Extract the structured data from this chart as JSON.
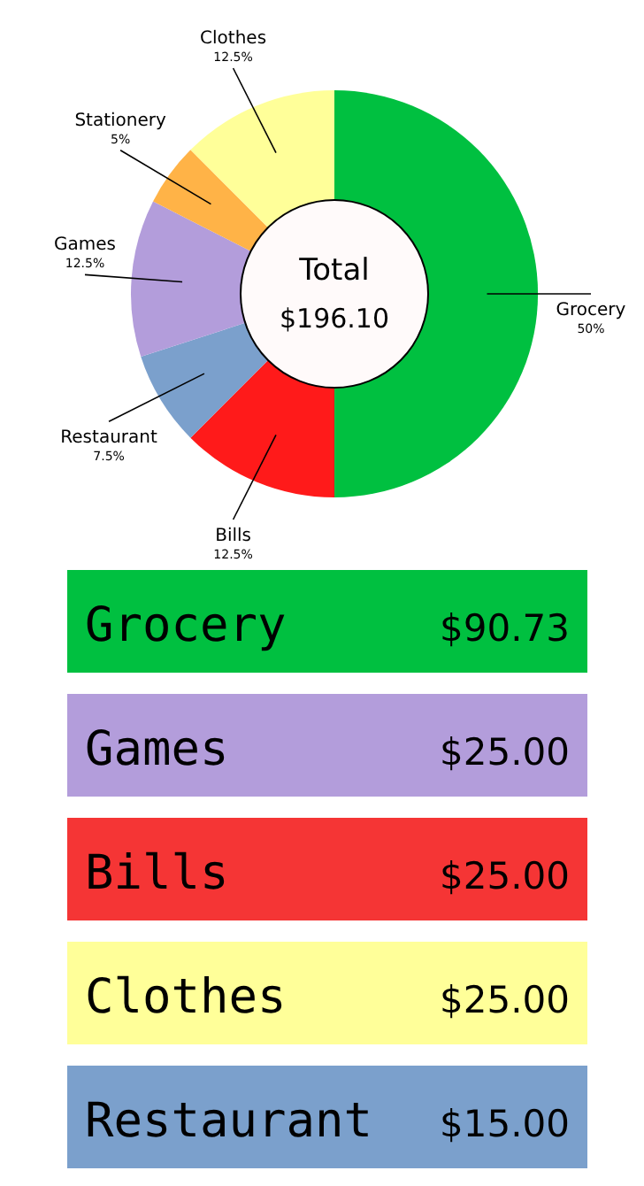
{
  "chart_data": [
    {
      "type": "donut",
      "categories": [
        "Grocery",
        "Bills",
        "Restaurant",
        "Games",
        "Stationery",
        "Clothes"
      ],
      "values": [
        50,
        12.5,
        7.5,
        12.5,
        5,
        12.5
      ],
      "value_labels": [
        "50%",
        "12.5%",
        "7.5%",
        "12.5%",
        "5%",
        "12.5%"
      ],
      "colors": [
        "#00c040",
        "#ff1a1a",
        "#7ba0cc",
        "#b39ddb",
        "#ffb347",
        "#ffff99"
      ],
      "annotations": [
        "Total",
        "$196.10"
      ]
    },
    {
      "type": "other",
      "categories": [
        "Grocery",
        "Games",
        "Bills",
        "Clothes",
        "Restaurant"
      ],
      "value_labels": [
        "$90.73",
        "$25.00",
        "$25.00",
        "$25.00",
        "$15.00"
      ],
      "colors": [
        "#00c040",
        "#b39ddb",
        "#f53535",
        "#ffff99",
        "#7ba0cc"
      ]
    }
  ]
}
